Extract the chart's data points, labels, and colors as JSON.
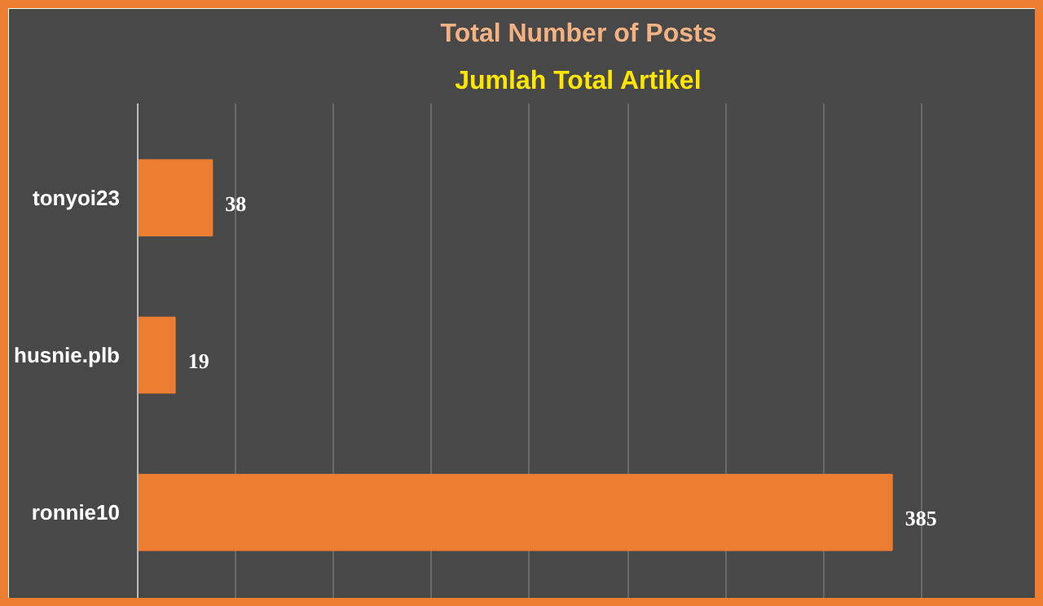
{
  "chart_data": {
    "type": "bar",
    "orientation": "horizontal",
    "title": "Total Number of Posts",
    "subtitle": "Jumlah Total Artikel",
    "categories": [
      "tonyoi23",
      "husnie.plb",
      "ronnie10"
    ],
    "values": [
      38,
      19,
      385
    ],
    "color": "#ed7d31",
    "xlim": [
      0,
      450
    ],
    "xticks": [
      {
        "value": 0,
        "label": null
      },
      {
        "value": 50,
        "label": null
      },
      {
        "value": 100,
        "label": null
      },
      {
        "value": 150,
        "label": null
      },
      {
        "value": 200,
        "label": null
      },
      {
        "value": 250,
        "label": null
      },
      {
        "value": 300,
        "label": null
      },
      {
        "value": 350,
        "label": null
      },
      {
        "value": 400,
        "label": null
      },
      {
        "value": 450,
        "label": null
      }
    ],
    "grid": "x",
    "tick_labels": "y",
    "data_labels": true
  }
}
